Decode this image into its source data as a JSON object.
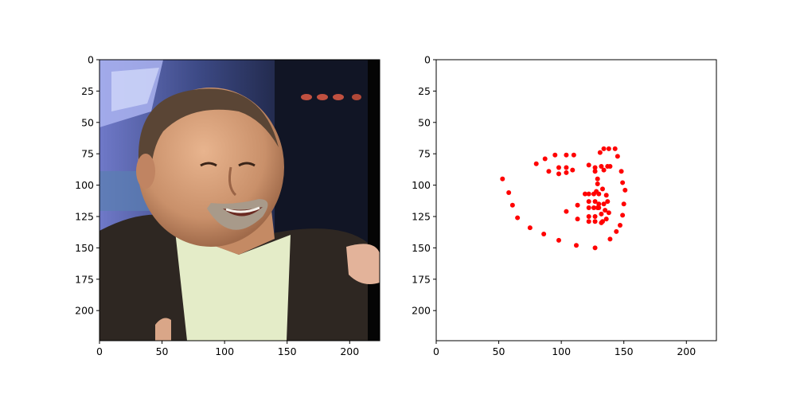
{
  "chart_data": [
    {
      "type": "image",
      "image_description": "Photo of a smiling bald man with a grey goatee, wearing a dark jacket and a light green shirt, gesturing with his left hand in a TV studio with blue lights",
      "xlim": [
        0,
        224
      ],
      "ylim": [
        224,
        0
      ],
      "xticks": [
        "0",
        "50",
        "100",
        "150",
        "200"
      ],
      "yticks": [
        "0",
        "25",
        "50",
        "75",
        "100",
        "125",
        "150",
        "175",
        "200"
      ],
      "xlabel": "",
      "ylabel": "",
      "title": "",
      "grid": false
    },
    {
      "type": "scatter",
      "marker_color": "#ff0000",
      "xlim": [
        0,
        224
      ],
      "ylim": [
        224,
        0
      ],
      "xticks": [
        "0",
        "50",
        "100",
        "150",
        "200"
      ],
      "yticks": [
        "0",
        "25",
        "50",
        "75",
        "100",
        "125",
        "150",
        "175",
        "200"
      ],
      "xlabel": "",
      "ylabel": "",
      "title": "",
      "grid": false,
      "series": [
        {
          "points": [
            [
              53,
              95
            ],
            [
              58,
              106
            ],
            [
              61,
              116
            ],
            [
              65,
              126
            ],
            [
              75,
              134
            ],
            [
              86,
              139
            ],
            [
              98,
              144
            ],
            [
              112,
              148
            ],
            [
              127,
              150
            ],
            [
              139,
              143
            ],
            [
              144,
              137
            ],
            [
              147,
              132
            ],
            [
              149,
              124
            ],
            [
              150,
              115
            ],
            [
              151,
              104
            ],
            [
              149,
              98
            ],
            [
              148,
              89
            ],
            [
              80,
              83
            ],
            [
              87,
              79
            ],
            [
              95,
              76
            ],
            [
              104,
              76
            ],
            [
              110,
              76
            ],
            [
              131,
              74
            ],
            [
              134,
              71
            ],
            [
              138,
              71
            ],
            [
              143,
              71
            ],
            [
              145,
              77
            ],
            [
              122,
              84
            ],
            [
              127,
              86
            ],
            [
              127,
              89
            ],
            [
              90,
              89
            ],
            [
              98,
              86
            ],
            [
              104,
              86
            ],
            [
              109,
              88
            ],
            [
              98,
              91
            ],
            [
              104,
              90
            ],
            [
              132,
              85
            ],
            [
              134,
              88
            ],
            [
              137,
              85
            ],
            [
              139,
              85
            ],
            [
              129,
              95
            ],
            [
              129,
              99
            ],
            [
              128,
              105
            ],
            [
              130,
              107
            ],
            [
              133,
              103
            ],
            [
              136,
              108
            ],
            [
              119,
              107
            ],
            [
              122,
              107
            ],
            [
              122,
              113
            ],
            [
              122,
              118
            ],
            [
              126,
              107
            ],
            [
              113,
              116
            ],
            [
              127,
              113
            ],
            [
              129,
              118
            ],
            [
              130,
              115
            ],
            [
              134,
              115
            ],
            [
              137,
              113
            ],
            [
              104,
              121
            ],
            [
              126,
              118
            ],
            [
              130,
              118
            ],
            [
              135,
              120
            ],
            [
              138,
              122
            ],
            [
              113,
              127
            ],
            [
              122,
              125
            ],
            [
              127,
              125
            ],
            [
              132,
              123
            ],
            [
              136,
              127
            ],
            [
              133,
              129
            ],
            [
              122,
              129
            ],
            [
              127,
              129
            ],
            [
              132,
              130
            ]
          ]
        }
      ]
    }
  ]
}
